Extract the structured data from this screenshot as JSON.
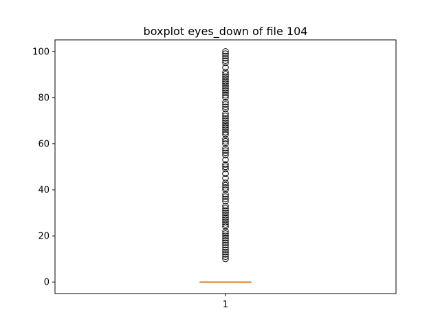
{
  "chart_data": {
    "type": "boxplot",
    "title": "boxplot eyes_down of file 104",
    "xlabel": "",
    "ylabel": "",
    "categories": [
      "1"
    ],
    "ylim": [
      -5,
      105
    ],
    "yticks": [
      0,
      20,
      40,
      60,
      80,
      100
    ],
    "box": {
      "min": 0,
      "q1": 0,
      "median": 0,
      "q3": 0,
      "max": 0
    },
    "outliers": [
      10,
      11,
      12,
      13,
      14,
      15,
      16,
      17,
      18,
      19,
      20,
      21,
      22,
      24,
      25,
      26,
      27,
      28,
      29,
      30,
      31,
      32,
      33,
      35,
      36,
      37,
      38,
      40,
      41,
      42,
      43,
      45,
      47,
      49,
      50,
      51,
      53,
      55,
      56,
      57,
      58,
      60,
      61,
      62,
      64,
      65,
      66,
      67,
      68,
      69,
      70,
      71,
      72,
      73,
      75,
      76,
      77,
      78,
      80,
      81,
      82,
      83,
      84,
      85,
      86,
      87,
      88,
      89,
      90,
      91,
      93,
      95,
      96,
      97,
      98,
      99,
      100
    ],
    "grid": false,
    "colors": {
      "median": "#ff7f0e",
      "box": "#000000",
      "outlier": "#000000"
    }
  }
}
